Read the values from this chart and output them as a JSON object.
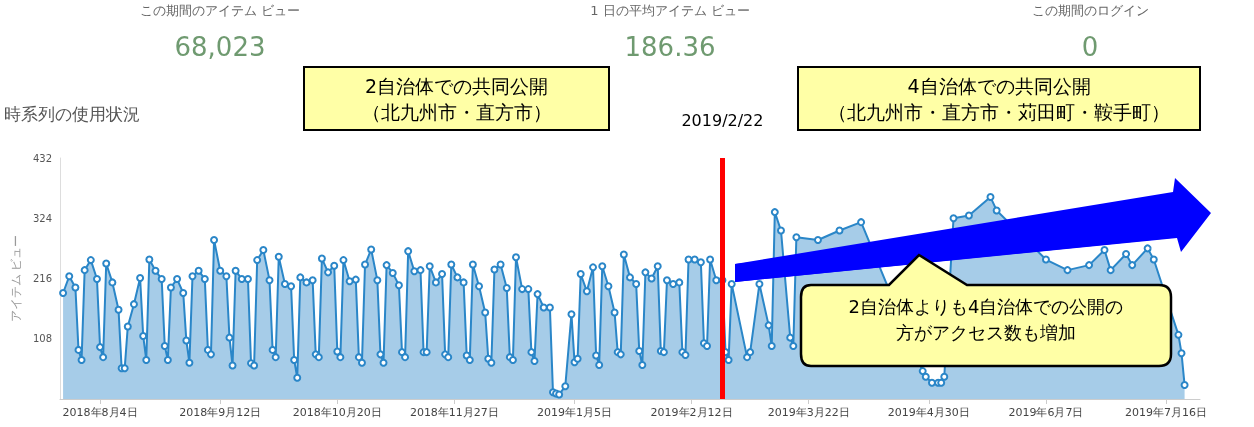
{
  "chart_data": {
    "type": "area",
    "title": "時系列の使用状況",
    "ylabel": "アイテム ビュー",
    "marker": "circle",
    "annotations": [
      "この期間のアイテム ビュー",
      "68,023",
      "1 日の平均アイテム ビュー",
      "186.36",
      "この期間のログイン",
      "0",
      "2自治体での共同公開（北九州市・直方市）",
      "4自治体での共同公開（北九州市・直方市・苅田町・鞍手町）",
      "2自治体よりも4自治体での公開の方がアクセス数も増加"
    ],
    "ref_lines": [
      {
        "axis": "x",
        "value": "2019-02-22",
        "label": "2019/2/22",
        "color": "#ff0000"
      }
    ],
    "xlim": [
      "2018-07-22",
      "2019-07-27"
    ],
    "xticks": [
      {
        "value": "2018-08-04",
        "label": "2018年8月4日"
      },
      {
        "value": "2018-09-12",
        "label": "2018年9月12日"
      },
      {
        "value": "2018-10-20",
        "label": "2018年10月20日"
      },
      {
        "value": "2018-11-27",
        "label": "2018年11月27日"
      },
      {
        "value": "2019-01-05",
        "label": "2019年1月5日"
      },
      {
        "value": "2019-02-12",
        "label": "2019年2月12日"
      },
      {
        "value": "2019-03-22",
        "label": "2019年3月22日"
      },
      {
        "value": "2019-04-30",
        "label": "2019年4月30日"
      },
      {
        "value": "2019-06-07",
        "label": "2019年6月7日"
      },
      {
        "value": "2019-07-16",
        "label": "2019年7月16日"
      }
    ],
    "ylim": [
      0,
      432
    ],
    "yticks": [
      108,
      216,
      324,
      432
    ],
    "series": [
      {
        "color": "#2a86c8",
        "x": [
          "2018-07-23",
          "2018-07-25",
          "2018-07-27",
          "2018-07-28",
          "2018-07-29",
          "2018-07-30",
          "2018-08-01",
          "2018-08-03",
          "2018-08-04",
          "2018-08-05",
          "2018-08-06",
          "2018-08-08",
          "2018-08-10",
          "2018-08-11",
          "2018-08-12",
          "2018-08-13",
          "2018-08-15",
          "2018-08-17",
          "2018-08-18",
          "2018-08-19",
          "2018-08-20",
          "2018-08-22",
          "2018-08-24",
          "2018-08-25",
          "2018-08-26",
          "2018-08-27",
          "2018-08-29",
          "2018-08-31",
          "2018-09-01",
          "2018-09-02",
          "2018-09-03",
          "2018-09-05",
          "2018-09-07",
          "2018-09-08",
          "2018-09-09",
          "2018-09-10",
          "2018-09-12",
          "2018-09-14",
          "2018-09-15",
          "2018-09-16",
          "2018-09-17",
          "2018-09-19",
          "2018-09-21",
          "2018-09-22",
          "2018-09-23",
          "2018-09-24",
          "2018-09-26",
          "2018-09-28",
          "2018-09-29",
          "2018-09-30",
          "2018-10-01",
          "2018-10-03",
          "2018-10-05",
          "2018-10-06",
          "2018-10-07",
          "2018-10-08",
          "2018-10-10",
          "2018-10-12",
          "2018-10-13",
          "2018-10-14",
          "2018-10-15",
          "2018-10-17",
          "2018-10-19",
          "2018-10-20",
          "2018-10-21",
          "2018-10-22",
          "2018-10-24",
          "2018-10-26",
          "2018-10-27",
          "2018-10-28",
          "2018-10-29",
          "2018-10-31",
          "2018-11-02",
          "2018-11-03",
          "2018-11-04",
          "2018-11-05",
          "2018-11-07",
          "2018-11-09",
          "2018-11-10",
          "2018-11-11",
          "2018-11-12",
          "2018-11-14",
          "2018-11-16",
          "2018-11-17",
          "2018-11-18",
          "2018-11-19",
          "2018-11-21",
          "2018-11-23",
          "2018-11-24",
          "2018-11-25",
          "2018-11-26",
          "2018-11-28",
          "2018-11-30",
          "2018-12-01",
          "2018-12-02",
          "2018-12-03",
          "2018-12-05",
          "2018-12-07",
          "2018-12-08",
          "2018-12-09",
          "2018-12-10",
          "2018-12-12",
          "2018-12-14",
          "2018-12-15",
          "2018-12-16",
          "2018-12-17",
          "2018-12-19",
          "2018-12-21",
          "2018-12-22",
          "2018-12-23",
          "2018-12-24",
          "2018-12-26",
          "2018-12-28",
          "2018-12-29",
          "2018-12-30",
          "2018-12-31",
          "2019-01-02",
          "2019-01-04",
          "2019-01-05",
          "2019-01-06",
          "2019-01-07",
          "2019-01-09",
          "2019-01-11",
          "2019-01-12",
          "2019-01-13",
          "2019-01-14",
          "2019-01-16",
          "2019-01-18",
          "2019-01-19",
          "2019-01-20",
          "2019-01-21",
          "2019-01-23",
          "2019-01-25",
          "2019-01-26",
          "2019-01-27",
          "2019-01-28",
          "2019-01-30",
          "2019-02-01",
          "2019-02-02",
          "2019-02-03",
          "2019-02-04",
          "2019-02-06",
          "2019-02-08",
          "2019-02-09",
          "2019-02-10",
          "2019-02-11",
          "2019-02-13",
          "2019-02-15",
          "2019-02-16",
          "2019-02-17",
          "2019-02-18",
          "2019-02-20",
          "2019-02-22",
          "2019-02-23",
          "2019-02-24",
          "2019-02-25",
          "2019-02-27",
          "2019-03-01",
          "2019-03-02",
          "2019-03-03",
          "2019-03-04",
          "2019-03-06",
          "2019-03-08",
          "2019-03-09",
          "2019-03-10",
          "2019-03-11",
          "2019-03-13",
          "2019-03-15",
          "2019-03-16",
          "2019-03-17",
          "2019-03-18",
          "2019-03-20",
          "2019-03-22",
          "2019-03-23",
          "2019-03-24",
          "2019-03-25",
          "2019-03-27",
          "2019-03-29",
          "2019-03-30",
          "2019-03-31",
          "2019-04-01",
          "2019-04-03",
          "2019-04-05",
          "2019-04-06",
          "2019-04-07",
          "2019-04-08",
          "2019-04-10",
          "2019-04-12",
          "2019-04-13",
          "2019-04-14",
          "2019-04-15",
          "2019-04-17",
          "2019-04-19",
          "2019-04-20",
          "2019-04-21",
          "2019-04-22",
          "2019-04-24",
          "2019-04-26",
          "2019-04-27",
          "2019-04-28",
          "2019-04-29",
          "2019-05-01",
          "2019-05-03",
          "2019-05-04",
          "2019-05-05",
          "2019-05-06",
          "2019-05-08",
          "2019-05-10",
          "2019-05-11",
          "2019-05-12",
          "2019-05-13",
          "2019-05-15",
          "2019-05-17",
          "2019-05-18",
          "2019-05-19",
          "2019-05-20",
          "2019-05-22",
          "2019-05-24",
          "2019-05-25",
          "2019-05-26",
          "2019-05-27",
          "2019-05-29",
          "2019-05-31",
          "2019-06-01",
          "2019-06-02",
          "2019-06-03",
          "2019-06-05",
          "2019-06-07",
          "2019-06-08",
          "2019-06-09",
          "2019-06-10",
          "2019-06-12",
          "2019-06-14",
          "2019-06-15",
          "2019-06-16",
          "2019-06-17",
          "2019-06-19",
          "2019-06-21",
          "2019-06-22",
          "2019-06-23",
          "2019-06-24",
          "2019-06-26",
          "2019-06-28",
          "2019-06-29",
          "2019-06-30",
          "2019-07-01",
          "2019-07-03",
          "2019-07-05",
          "2019-07-06",
          "2019-07-07",
          "2019-07-08",
          "2019-07-10",
          "2019-07-12",
          "2019-07-13",
          "2019-07-14",
          "2019-07-15",
          "2019-07-17",
          "2019-07-19",
          "2019-07-20",
          "2019-07-21",
          "2019-07-22"
        ],
        "values": [
          190,
          220,
          200,
          88,
          70,
          231,
          249,
          215,
          93,
          75,
          243,
          209,
          160,
          55,
          55,
          130,
          170,
          217,
          113,
          70,
          250,
          230,
          215,
          95,
          70,
          200,
          215,
          190,
          105,
          65,
          220,
          230,
          215,
          88,
          80,
          285,
          230,
          220,
          110,
          60,
          230,
          215,
          215,
          64,
          60,
          249,
          267,
          213,
          88,
          75,
          255,
          206,
          202,
          70,
          38,
          218,
          209,
          213,
          80,
          75,
          252,
          227,
          239,
          85,
          75,
          249,
          211,
          214,
          75,
          65,
          241,
          268,
          213,
          80,
          65,
          240,
          226,
          204,
          84,
          75,
          265,
          229,
          231,
          84,
          84,
          238,
          209,
          224,
          80,
          75,
          241,
          218,
          209,
          78,
          70,
          241,
          202,
          155,
          72,
          65,
          232,
          241,
          199,
          75,
          70,
          254,
          197,
          197,
          84,
          68,
          188,
          164,
          164,
          12,
          10,
          8,
          23,
          152,
          66,
          72,
          224,
          193,
          236,
          78,
          61,
          238,
          202,
          155,
          84,
          80,
          259,
          218,
          206,
          86,
          61,
          227,
          216,
          238,
          86,
          84,
          213,
          206,
          209,
          84,
          79,
          250,
          250,
          245,
          100,
          95,
          250,
          213,
          213,
          84,
          70,
          206,
          null,
          null,
          75,
          84,
          null,
          206,
          null,
          132,
          95,
          335,
          302,
          null,
          110,
          95,
          290,
          null,
          null,
          null,
          null,
          285,
          null,
          null,
          null,
          null,
          302,
          null,
          null,
          null,
          null,
          317,
          null,
          null,
          null,
          null,
          null,
          null,
          null,
          null,
          null,
          null,
          null,
          null,
          null,
          50,
          40,
          29,
          29,
          29,
          40,
          null,
          324,
          null,
          null,
          null,
          329,
          null,
          null,
          null,
          null,
          362,
          338,
          null,
          null,
          null,
          null,
          null,
          null,
          null,
          null,
          null,
          null,
          250,
          null,
          null,
          null,
          null,
          231,
          null,
          null,
          null,
          null,
          240,
          null,
          null,
          null,
          267,
          231,
          null,
          null,
          null,
          260,
          240,
          null,
          null,
          null,
          270,
          250,
          null,
          null,
          null,
          null,
          null,
          115,
          82,
          25
        ]
      }
    ]
  }
}
